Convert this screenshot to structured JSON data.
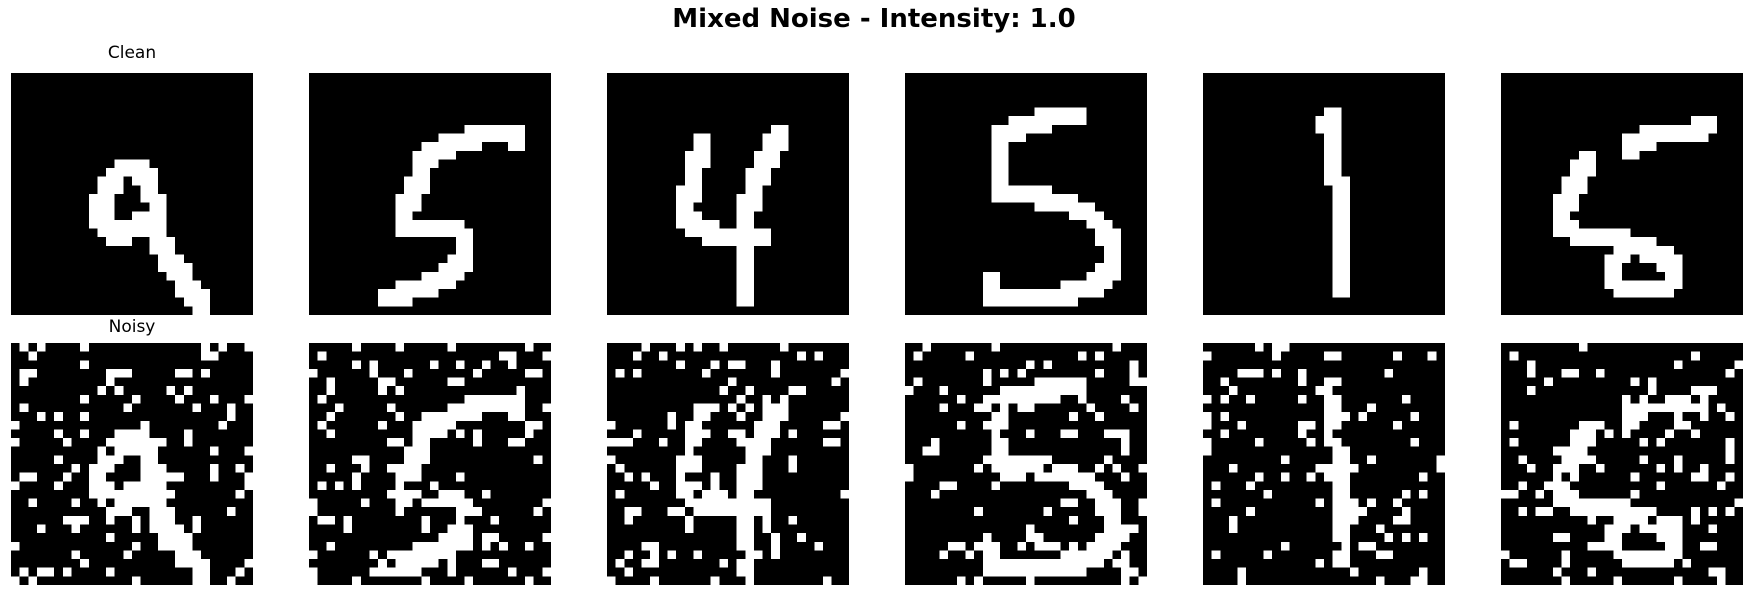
{
  "title": "Mixed Noise - Intensity: 1.0",
  "row_labels": [
    "Clean",
    "Noisy"
  ],
  "colors": {
    "background": "#000000",
    "foreground": "#ffffff"
  },
  "chart_data": {
    "type": "heatmap",
    "title": "Mixed Noise - Intensity: 1.0",
    "grid": false,
    "axes_visible": false,
    "image_size": [
      28,
      28
    ],
    "pixel_values": [
      0,
      1
    ],
    "rows": [
      {
        "label": "Clean",
        "images": [
          {
            "digit": 9,
            "strokes": [
              [
                [
                  14,
                  10
                ],
                [
                  12,
                  10
                ],
                [
                  11,
                  11
                ],
                [
                  10,
                  13
                ],
                [
                  9,
                  15
                ],
                [
                  10,
                  17
                ],
                [
                  12,
                  18
                ],
                [
                  13,
                  17
                ],
                [
                  14,
                  16
                ],
                [
                  15,
                  17
                ],
                [
                  16,
                  18
                ],
                [
                  17,
                  20
                ],
                [
                  19,
                  23
                ],
                [
                  21,
                  26
                ]
              ],
              [
                [
                  14,
                  10
                ],
                [
                  15,
                  12
                ],
                [
                  16,
                  15
                ],
                [
                  15,
                  17
                ]
              ]
            ]
          },
          {
            "digit": 5,
            "strokes": [
              [
                [
                  23,
                  6
                ],
                [
                  21,
                  6
                ],
                [
                  19,
                  6
                ],
                [
                  16,
                  7
                ],
                [
                  13,
                  8
                ],
                [
                  12,
                  10
                ],
                [
                  11,
                  13
                ],
                [
                  10,
                  15
                ],
                [
                  10,
                  17
                ],
                [
                  13,
                  17
                ],
                [
                  16,
                  17
                ],
                [
                  17,
                  18
                ],
                [
                  17,
                  20
                ],
                [
                  16,
                  22
                ],
                [
                  14,
                  23
                ],
                [
                  11,
                  24
                ],
                [
                  8,
                  25
                ]
              ],
              [
                [
                  23,
                  6
                ],
                [
                  23,
                  7
                ]
              ]
            ]
          },
          {
            "digit": 4,
            "strokes": [
              [
                [
                  10,
                  7
                ],
                [
                  10,
                  8
                ],
                [
                  9,
                  10
                ],
                [
                  9,
                  12
                ],
                [
                  8,
                  14
                ],
                [
                  8,
                  16
                ],
                [
                  10,
                  17
                ],
                [
                  12,
                  18
                ],
                [
                  14,
                  18
                ],
                [
                  17,
                  18
                ]
              ],
              [
                [
                  19,
                  6
                ],
                [
                  18,
                  8
                ],
                [
                  17,
                  10
                ],
                [
                  16,
                  12
                ],
                [
                  15,
                  15
                ],
                [
                  15,
                  18
                ],
                [
                  15,
                  20
                ],
                [
                  15,
                  22
                ],
                [
                  15,
                  25
                ]
              ]
            ]
          },
          {
            "digit": 5,
            "strokes": [
              [
                [
                  19,
                  4
                ],
                [
                  16,
                  4
                ],
                [
                  14,
                  5
                ],
                [
                  10,
                  6
                ],
                [
                  10,
                  8
                ],
                [
                  10,
                  10
                ],
                [
                  10,
                  12
                ],
                [
                  10,
                  13
                ],
                [
                  13,
                  13
                ],
                [
                  17,
                  14
                ],
                [
                  20,
                  15
                ],
                [
                  22,
                  17
                ],
                [
                  23,
                  19
                ],
                [
                  23,
                  21
                ],
                [
                  22,
                  23
                ],
                [
                  20,
                  24
                ],
                [
                  16,
                  25
                ],
                [
                  11,
                  25
                ],
                [
                  9,
                  25
                ],
                [
                  9,
                  23
                ]
              ]
            ]
          },
          {
            "digit": 1,
            "strokes": [
              [
                [
                  14,
                  5
                ],
                [
                  14,
                  7
                ],
                [
                  14,
                  10
                ],
                [
                  15,
                  13
                ],
                [
                  15,
                  16
                ],
                [
                  15,
                  19
                ],
                [
                  15,
                  22
                ],
                [
                  15,
                  24
                ]
              ],
              [
                [
                  13,
                  5
                ],
                [
                  14,
                  4
                ]
              ]
            ]
          },
          {
            "digit": 6,
            "strokes": [
              [
                [
                  23,
                  5
                ],
                [
                  20,
                  6
                ],
                [
                  17,
                  6
                ],
                [
                  14,
                  7
                ],
                [
                  14,
                  8
                ]
              ],
              [
                [
                  9,
                  9
                ],
                [
                  8,
                  11
                ],
                [
                  7,
                  13
                ],
                [
                  6,
                  15
                ],
                [
                  6,
                  17
                ],
                [
                  9,
                  18
                ],
                [
                  12,
                  18
                ],
                [
                  15,
                  19
                ],
                [
                  17,
                  20
                ],
                [
                  19,
                  21
                ],
                [
                  19,
                  23
                ],
                [
                  18,
                  24
                ],
                [
                  16,
                  24
                ],
                [
                  13,
                  24
                ],
                [
                  12,
                  23
                ],
                [
                  12,
                  21
                ],
                [
                  14,
                  19
                ]
              ]
            ]
          }
        ]
      },
      {
        "label": "Noisy",
        "images": [
          {
            "digit": 9,
            "salt_fraction": 0.13
          },
          {
            "digit": 5,
            "salt_fraction": 0.13
          },
          {
            "digit": 4,
            "salt_fraction": 0.13
          },
          {
            "digit": 5,
            "salt_fraction": 0.13
          },
          {
            "digit": 1,
            "salt_fraction": 0.13
          },
          {
            "digit": 6,
            "salt_fraction": 0.13
          }
        ]
      }
    ]
  }
}
